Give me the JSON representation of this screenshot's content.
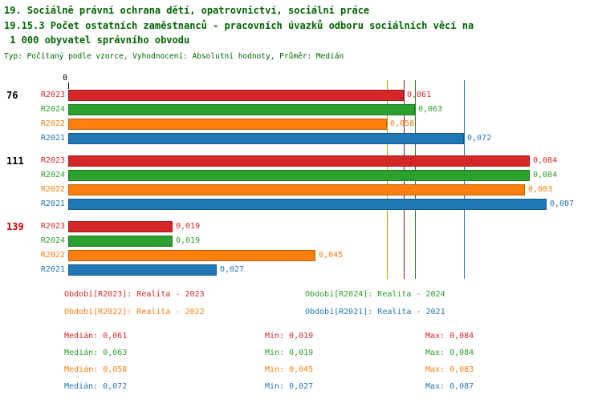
{
  "title": {
    "line1": "19. Sociálně právní ochrana dětí, opatrovnictví, sociální práce",
    "line2": "19.15.3 Počet ostatních zaměstnanců - pracovních úvazků odboru sociálních věcí na",
    "line3": " 1 000 obyvatel správního obvodu",
    "meta": "Typ: Počítaný podle vzorce, Vyhodnocení: Absolutní hodnoty, Průměr: Medián"
  },
  "colors": {
    "title_green": "#006600",
    "R2023": "#d62728",
    "R2024": "#2ca02c",
    "R2022": "#ff7f0e",
    "R2021": "#1f77b4",
    "median_R2023": "#8b1515",
    "median_R2024": "#228022",
    "median_R2022": "#c0a000",
    "median_R2021": "#1f77b4",
    "highlight_red": "#cc0000",
    "black": "#000000"
  },
  "chart_data": {
    "type": "bar",
    "orientation": "horizontal",
    "x_axis": {
      "origin_label": "0",
      "xlim": [
        0,
        0.097
      ]
    },
    "series_order": [
      "R2023",
      "R2024",
      "R2022",
      "R2021"
    ],
    "groups": [
      {
        "label": "76",
        "label_color": "#000000",
        "bars": [
          {
            "series": "R2023",
            "value": 0.061,
            "display": "0,061"
          },
          {
            "series": "R2024",
            "value": 0.063,
            "display": "0,063"
          },
          {
            "series": "R2022",
            "value": 0.058,
            "display": "0,058"
          },
          {
            "series": "R2021",
            "value": 0.072,
            "display": "0,072"
          }
        ]
      },
      {
        "label": "111",
        "label_color": "#000000",
        "bars": [
          {
            "series": "R2023",
            "value": 0.084,
            "display": "0,084"
          },
          {
            "series": "R2024",
            "value": 0.084,
            "display": "0,084"
          },
          {
            "series": "R2022",
            "value": 0.083,
            "display": "0,083"
          },
          {
            "series": "R2021",
            "value": 0.087,
            "display": "0,087"
          }
        ]
      },
      {
        "label": "139",
        "label_color": "#cc0000",
        "bars": [
          {
            "series": "R2023",
            "value": 0.019,
            "display": "0,019"
          },
          {
            "series": "R2024",
            "value": 0.019,
            "display": "0,019"
          },
          {
            "series": "R2022",
            "value": 0.045,
            "display": "0,045"
          },
          {
            "series": "R2021",
            "value": 0.027,
            "display": "0,027"
          }
        ]
      }
    ],
    "median_lines": [
      {
        "series": "R2022",
        "value": 0.058
      },
      {
        "series": "R2023",
        "value": 0.061
      },
      {
        "series": "R2024",
        "value": 0.063
      },
      {
        "series": "R2021",
        "value": 0.072
      }
    ]
  },
  "legend": [
    {
      "series": "R2023",
      "text": "Období[R2023]: Realita - 2023",
      "col": 0,
      "row": 0
    },
    {
      "series": "R2024",
      "text": "Období[R2024]: Realita - 2024",
      "col": 1,
      "row": 0
    },
    {
      "series": "R2022",
      "text": "Období[R2022]: Realita - 2022",
      "col": 0,
      "row": 1
    },
    {
      "series": "R2021",
      "text": "Období[R2021]: Realita - 2021",
      "col": 1,
      "row": 1
    }
  ],
  "stats": [
    {
      "series": "R2023",
      "median": "Medián: 0,061",
      "min": "Min: 0,019",
      "max": "Max: 0,084"
    },
    {
      "series": "R2024",
      "median": "Medián: 0,063",
      "min": "Min: 0,019",
      "max": "Max: 0,084"
    },
    {
      "series": "R2022",
      "median": "Medián: 0,058",
      "min": "Min: 0,045",
      "max": "Max: 0,083"
    },
    {
      "series": "R2021",
      "median": "Medián: 0,072",
      "min": "Min: 0,027",
      "max": "Max: 0,087"
    }
  ]
}
